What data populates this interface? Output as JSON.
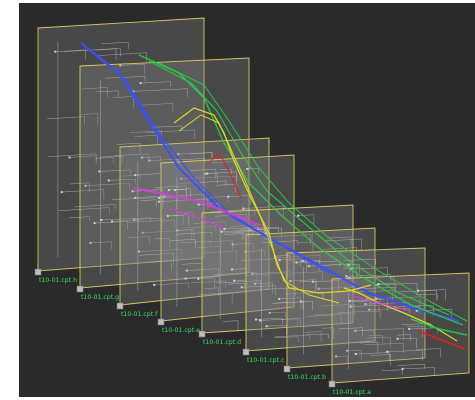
{
  "colors": {
    "background": "#2a2a2a",
    "panel_fill": "#8a8a8a",
    "panel_border": "#d8c860",
    "circuit": "#cfcfcf",
    "label": "#38e060",
    "handle": "#bdbdbd",
    "trace_blue": "#3a50ff",
    "trace_green": "#22d040",
    "trace_yellow": "#e8e020",
    "trace_magenta": "#d040d8",
    "trace_red": "#e02020"
  },
  "layers": [
    {
      "label": "t10-01.cpt.h"
    },
    {
      "label": "t10-01.cpt.g"
    },
    {
      "label": "t10-01.cpt.f"
    },
    {
      "label": "t10-01.cpt.e"
    },
    {
      "label": "t10-01.cpt.d"
    },
    {
      "label": "t10-01.cpt.c"
    },
    {
      "label": "t10-01.cpt.b"
    },
    {
      "label": "t10-01.cpt.a"
    }
  ]
}
